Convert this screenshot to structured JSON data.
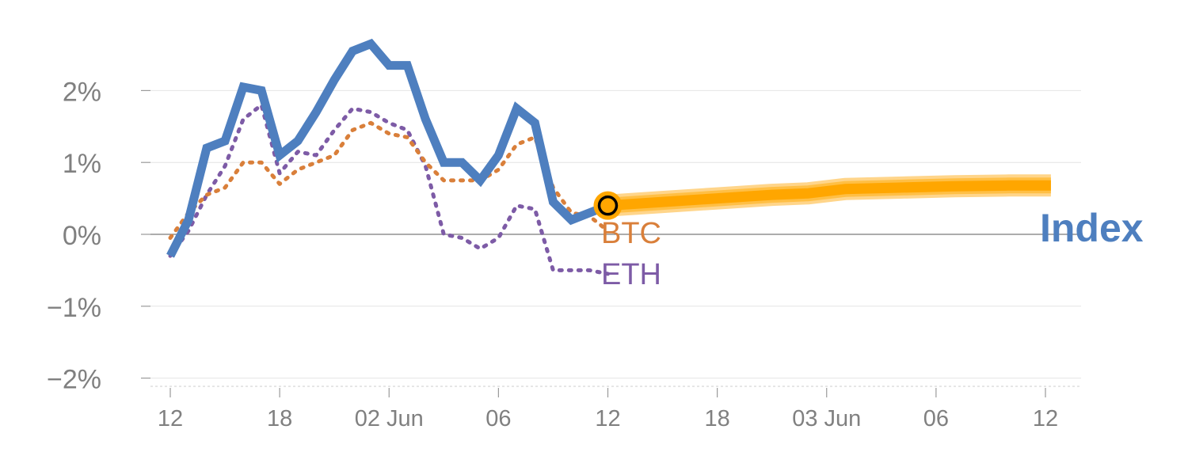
{
  "chart_data": {
    "type": "line",
    "title": "",
    "xlabel": "",
    "ylabel": "",
    "x_units": "hours since the first tick label (12:00)",
    "x_ticks": [
      {
        "x": 0,
        "label": "12"
      },
      {
        "x": 6,
        "label": "18"
      },
      {
        "x": 12,
        "label": "02 Jun"
      },
      {
        "x": 18,
        "label": "06"
      },
      {
        "x": 24,
        "label": "12"
      },
      {
        "x": 30,
        "label": "18"
      },
      {
        "x": 36,
        "label": "03 Jun"
      },
      {
        "x": 42,
        "label": "06"
      },
      {
        "x": 48,
        "label": "12"
      }
    ],
    "y_ticks": [
      {
        "y": 2,
        "label": "2%"
      },
      {
        "y": 1,
        "label": "1%"
      },
      {
        "y": 0,
        "label": "0%"
      },
      {
        "y": -1,
        "label": "−1%"
      },
      {
        "y": -2,
        "label": "−2%"
      }
    ],
    "xlim": [
      -1,
      49.5
    ],
    "ylim": [
      -2.1,
      2.8
    ],
    "grid": true,
    "series": [
      {
        "name": "Index",
        "color": "#4e7fbf",
        "style": "solid",
        "points": [
          [
            0,
            -0.3
          ],
          [
            1,
            0.2
          ],
          [
            2,
            1.2
          ],
          [
            3,
            1.3
          ],
          [
            4,
            2.05
          ],
          [
            5,
            2.0
          ],
          [
            6,
            1.1
          ],
          [
            7,
            1.3
          ],
          [
            8,
            1.7
          ],
          [
            9,
            2.15
          ],
          [
            10,
            2.55
          ],
          [
            11,
            2.65
          ],
          [
            12,
            2.35
          ],
          [
            13,
            2.35
          ],
          [
            14,
            1.6
          ],
          [
            15,
            1.0
          ],
          [
            16,
            1.0
          ],
          [
            17,
            0.75
          ],
          [
            18,
            1.1
          ],
          [
            19,
            1.75
          ],
          [
            20,
            1.55
          ],
          [
            21,
            0.45
          ],
          [
            22,
            0.2
          ],
          [
            23,
            0.3
          ],
          [
            24,
            0.4
          ]
        ]
      },
      {
        "name": "BTC",
        "color": "#d97f3a",
        "style": "dotted",
        "points": [
          [
            0,
            -0.05
          ],
          [
            1,
            0.3
          ],
          [
            2,
            0.55
          ],
          [
            3,
            0.65
          ],
          [
            4,
            1.0
          ],
          [
            5,
            1.0
          ],
          [
            6,
            0.7
          ],
          [
            7,
            0.9
          ],
          [
            8,
            1.0
          ],
          [
            9,
            1.1
          ],
          [
            10,
            1.45
          ],
          [
            11,
            1.55
          ],
          [
            12,
            1.4
          ],
          [
            13,
            1.35
          ],
          [
            14,
            1.0
          ],
          [
            15,
            0.75
          ],
          [
            16,
            0.75
          ],
          [
            17,
            0.75
          ],
          [
            18,
            0.9
          ],
          [
            19,
            1.25
          ],
          [
            20,
            1.35
          ],
          [
            21,
            0.65
          ],
          [
            22,
            0.3
          ],
          [
            23,
            0.25
          ],
          [
            24,
            0.05
          ]
        ]
      },
      {
        "name": "ETH",
        "color": "#7d5ba6",
        "style": "dotted",
        "points": [
          [
            0,
            -0.3
          ],
          [
            1,
            0.05
          ],
          [
            2,
            0.55
          ],
          [
            3,
            0.95
          ],
          [
            4,
            1.6
          ],
          [
            5,
            1.8
          ],
          [
            6,
            0.85
          ],
          [
            7,
            1.15
          ],
          [
            8,
            1.1
          ],
          [
            9,
            1.45
          ],
          [
            10,
            1.75
          ],
          [
            11,
            1.7
          ],
          [
            12,
            1.55
          ],
          [
            13,
            1.45
          ],
          [
            14,
            0.95
          ],
          [
            15,
            0.0
          ],
          [
            16,
            -0.05
          ],
          [
            17,
            -0.2
          ],
          [
            18,
            -0.05
          ],
          [
            19,
            0.4
          ],
          [
            20,
            0.35
          ],
          [
            21,
            -0.5
          ],
          [
            22,
            -0.5
          ],
          [
            23,
            -0.5
          ],
          [
            24,
            -0.55
          ]
        ]
      },
      {
        "name": "Index",
        "label_printed": false,
        "color": "#ffa600",
        "style": "band",
        "points": [
          [
            24,
            0.4
          ],
          [
            27,
            0.45
          ],
          [
            30,
            0.5
          ],
          [
            33,
            0.55
          ],
          [
            35,
            0.57
          ],
          [
            37,
            0.63
          ],
          [
            40,
            0.65
          ],
          [
            43,
            0.67
          ],
          [
            46,
            0.68
          ],
          [
            48.3,
            0.68
          ]
        ]
      }
    ],
    "marker": {
      "x": 24,
      "y": 0.4,
      "fill": "#ffa600",
      "stroke": "#000000"
    },
    "series_labels": [
      {
        "text": "Index",
        "color": "#4e7fbf",
        "bold": true
      },
      {
        "text": "BTC",
        "color": "#d97f3a",
        "bold": false
      },
      {
        "text": "ETH",
        "color": "#7d5ba6",
        "bold": false
      }
    ]
  }
}
